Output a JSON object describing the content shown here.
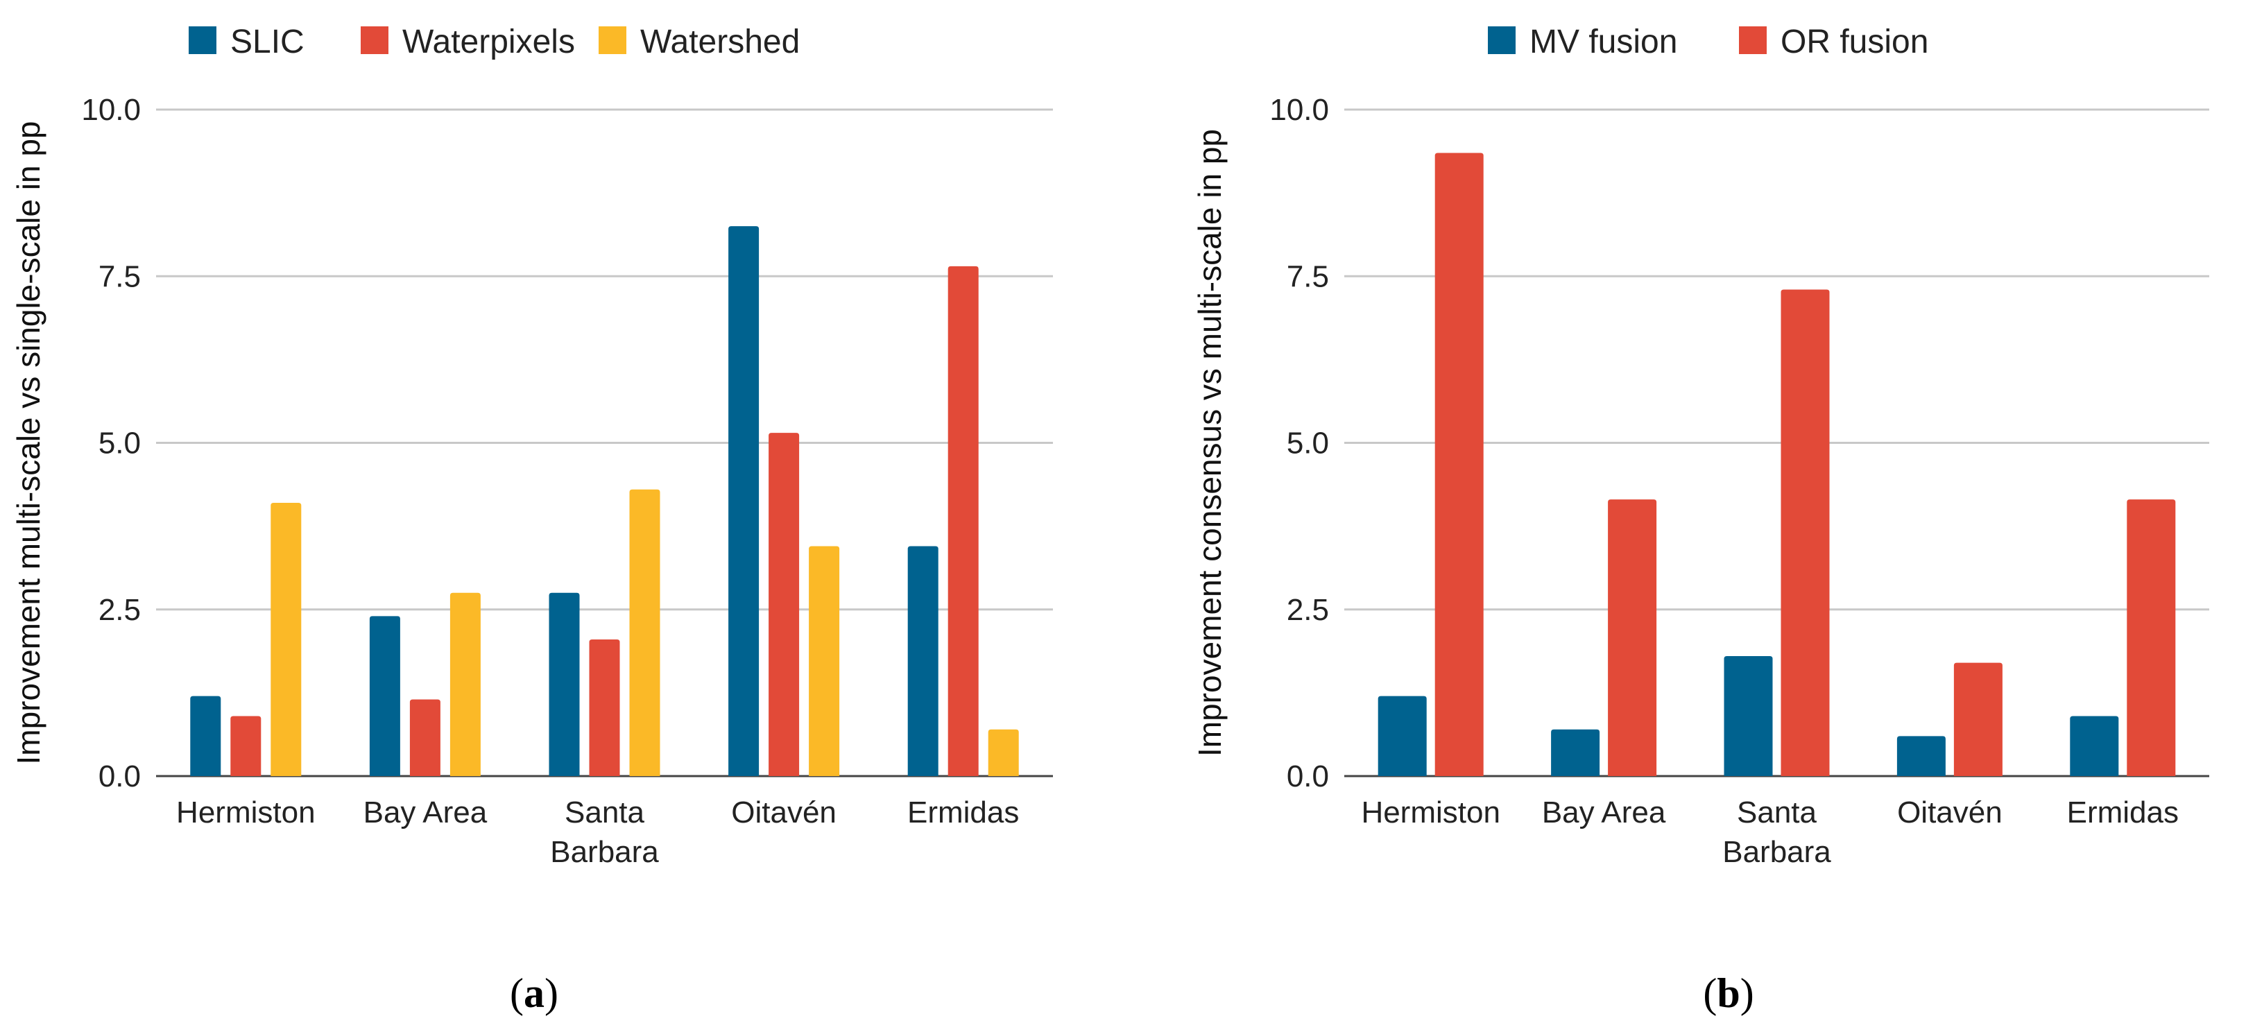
{
  "chart_data": [
    {
      "type": "bar",
      "categories": [
        [
          "Hermiston"
        ],
        [
          "Bay Area"
        ],
        [
          "Santa",
          "Barbara"
        ],
        [
          "Oitavén"
        ],
        [
          "Ermidas"
        ]
      ],
      "series": [
        {
          "name": "SLIC",
          "color": "#00628f",
          "values": [
            1.2,
            2.4,
            2.75,
            8.25,
            3.45
          ]
        },
        {
          "name": "Waterpixels",
          "color": "#e24a38",
          "values": [
            0.9,
            1.15,
            2.05,
            5.15,
            7.65
          ]
        },
        {
          "name": "Watershed",
          "color": "#fbb927",
          "values": [
            4.1,
            2.75,
            4.3,
            3.45,
            0.7
          ]
        }
      ],
      "ylabel": "Improvement multi-scale vs single-scale in pp",
      "ylim": [
        0,
        10
      ],
      "yticks": [
        "0.0",
        "2.5",
        "5.0",
        "7.5",
        "10.0"
      ],
      "grid": true,
      "legend": "top",
      "caption": {
        "open": "(",
        "letter": "a",
        "close": ")"
      }
    },
    {
      "type": "bar",
      "categories": [
        [
          "Hermiston"
        ],
        [
          "Bay Area"
        ],
        [
          "Santa",
          "Barbara"
        ],
        [
          "Oitavén"
        ],
        [
          "Ermidas"
        ]
      ],
      "series": [
        {
          "name": "MV fusion",
          "color": "#00628f",
          "values": [
            1.2,
            0.7,
            1.8,
            0.6,
            0.9
          ]
        },
        {
          "name": "OR fusion",
          "color": "#e24a38",
          "values": [
            9.35,
            4.15,
            7.3,
            1.7,
            4.15
          ]
        }
      ],
      "ylabel": "Improvement consensus vs multi-scale in pp",
      "ylim": [
        0,
        10
      ],
      "yticks": [
        "0.0",
        "2.5",
        "5.0",
        "7.5",
        "10.0"
      ],
      "grid": true,
      "legend": "top",
      "caption": {
        "open": "(",
        "letter": "b",
        "close": ")"
      }
    }
  ]
}
